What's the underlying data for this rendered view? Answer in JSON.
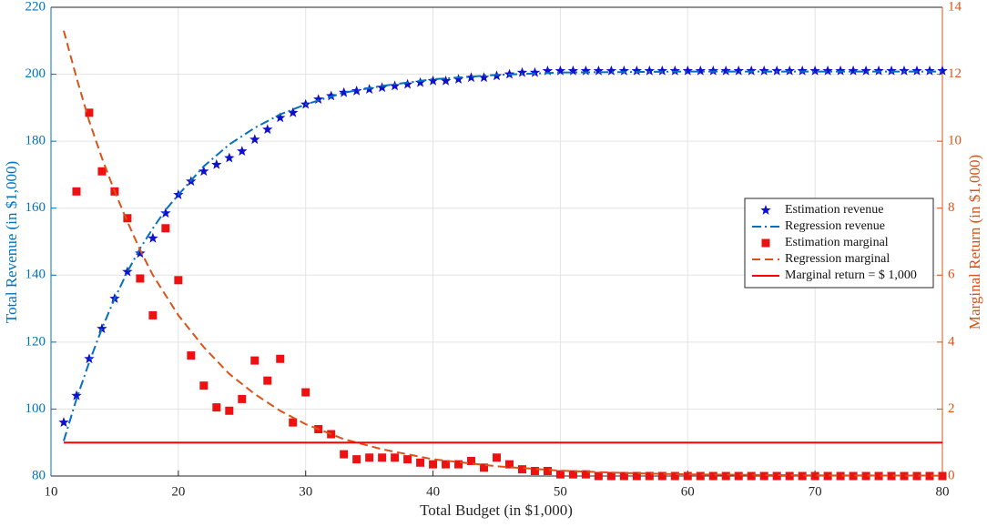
{
  "chart_data": {
    "type": "line",
    "xlabel": "Total Budget (in $1,000)",
    "ylabel": "Total Revenue (in $1,000)",
    "y2label": "Marginal Return (in $1,000)",
    "xlim": [
      10,
      80
    ],
    "xticks": [
      10,
      20,
      30,
      40,
      50,
      60,
      70,
      80
    ],
    "ylim": [
      80,
      220
    ],
    "yticks": [
      80,
      100,
      120,
      140,
      160,
      180,
      200,
      220
    ],
    "y2lim": [
      0,
      14
    ],
    "y2ticks": [
      0,
      2,
      4,
      6,
      8,
      10,
      12,
      14
    ],
    "grid": true,
    "legend": "center right",
    "ycolor": "#0072bd",
    "y2color": "#d95319",
    "series": [
      {
        "name": "Estimation revenue",
        "color": "#1010cc",
        "marker": "star",
        "style": "none",
        "x": [
          11,
          12,
          13,
          14,
          15,
          16,
          17,
          18,
          19,
          20,
          21,
          22,
          23,
          24,
          25,
          26,
          27,
          28,
          29,
          30,
          31,
          32,
          33,
          34,
          35,
          36,
          37,
          38,
          39,
          40,
          41,
          42,
          43,
          44,
          45,
          46,
          47,
          48,
          49,
          50,
          51,
          52,
          53,
          54,
          55,
          56,
          57,
          58,
          59,
          60,
          61,
          62,
          63,
          64,
          65,
          66,
          67,
          68,
          69,
          70,
          71,
          72,
          73,
          74,
          75,
          76,
          77,
          78,
          79,
          80
        ],
        "values": [
          96,
          104,
          115,
          124,
          133,
          141,
          146.5,
          151,
          158.5,
          164,
          168,
          171,
          173,
          175,
          177,
          180.5,
          183.5,
          187,
          188.5,
          191,
          192.5,
          193.5,
          194.5,
          195,
          195.5,
          196,
          196.5,
          197,
          197.5,
          198,
          198,
          198.5,
          199,
          199,
          199.5,
          200,
          200.5,
          200.5,
          201,
          201,
          201,
          201,
          201,
          201,
          201,
          201,
          201,
          201,
          201,
          201,
          201,
          201,
          201,
          201,
          201,
          201,
          201,
          201,
          201,
          201,
          201,
          201,
          201,
          201,
          201,
          201,
          201,
          201,
          201,
          201
        ]
      },
      {
        "name": "Regression revenue",
        "color": "#0072bd",
        "marker": "none",
        "style": "dash-dot",
        "x": [
          11,
          12,
          13,
          14,
          15,
          16,
          17,
          18,
          19,
          20,
          22,
          24,
          26,
          28,
          30,
          33,
          36,
          40,
          45,
          50,
          60,
          70,
          80
        ],
        "values": [
          90.5,
          103,
          114,
          124,
          133,
          141,
          148,
          154,
          159.5,
          164,
          172.5,
          179,
          184,
          188,
          191,
          194.5,
          196.5,
          198.5,
          199.8,
          200.5,
          200.8,
          200.8,
          200.8
        ]
      },
      {
        "name": "Estimation marginal",
        "color": "#ee1111",
        "marker": "square",
        "style": "none",
        "axis": "y2",
        "x": [
          12,
          13,
          14,
          15,
          16,
          17,
          18,
          19,
          20,
          21,
          22,
          23,
          24,
          25,
          26,
          27,
          28,
          29,
          30,
          31,
          32,
          33,
          34,
          35,
          36,
          37,
          38,
          39,
          40,
          41,
          42,
          43,
          44,
          45,
          46,
          47,
          48,
          49,
          50,
          51,
          52,
          53,
          54,
          55,
          56,
          57,
          58,
          59,
          60,
          61,
          62,
          63,
          64,
          65,
          66,
          67,
          68,
          69,
          70,
          71,
          72,
          73,
          74,
          75,
          76,
          77,
          78,
          79,
          80
        ],
        "values": [
          8.5,
          10.85,
          9.1,
          8.5,
          7.7,
          5.9,
          4.8,
          7.4,
          5.85,
          3.6,
          2.7,
          2.05,
          1.95,
          2.3,
          3.45,
          2.85,
          3.5,
          1.6,
          2.5,
          1.4,
          1.25,
          0.65,
          0.5,
          0.55,
          0.55,
          0.55,
          0.5,
          0.4,
          0.35,
          0.35,
          0.35,
          0.45,
          0.25,
          0.55,
          0.35,
          0.2,
          0.15,
          0.15,
          0.05,
          0.05,
          0.05,
          0,
          0,
          0,
          0,
          0,
          0,
          0,
          0,
          0,
          0,
          0,
          0,
          0,
          0,
          0,
          0,
          0,
          0,
          0,
          0,
          0,
          0,
          0,
          0,
          0,
          0,
          0,
          0
        ]
      },
      {
        "name": "Regression marginal",
        "color": "#d95319",
        "marker": "none",
        "style": "dashed",
        "axis": "y2",
        "x": [
          11,
          12,
          13,
          14,
          15,
          16,
          17,
          18,
          19,
          20,
          22,
          24,
          26,
          28,
          30,
          33,
          36,
          40,
          45,
          50,
          55,
          60,
          70,
          80
        ],
        "values": [
          13.3,
          11.9,
          10.6,
          9.5,
          8.5,
          7.6,
          6.75,
          6.0,
          5.4,
          4.8,
          3.85,
          3.05,
          2.45,
          1.95,
          1.55,
          1.1,
          0.8,
          0.5,
          0.29,
          0.16,
          0.09,
          0.05,
          0.02,
          0.01
        ]
      },
      {
        "name": "Marginal return = $ 1,000",
        "color": "#ff0000",
        "marker": "none",
        "style": "solid",
        "axis": "y2",
        "x": [
          11,
          80
        ],
        "values": [
          1,
          1
        ]
      }
    ]
  }
}
